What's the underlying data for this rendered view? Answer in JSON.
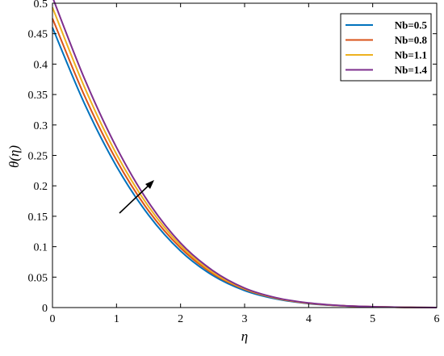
{
  "chart_data": {
    "type": "line",
    "xlabel": "η",
    "ylabel": "θ(η)",
    "xlim": [
      0,
      6
    ],
    "ylim": [
      0,
      0.5
    ],
    "xticks": [
      "0",
      "1",
      "2",
      "3",
      "4",
      "5",
      "6"
    ],
    "yticks": [
      "0",
      "0.05",
      "0.1",
      "0.15",
      "0.2",
      "0.25",
      "0.3",
      "0.35",
      "0.4",
      "0.45",
      "0.5"
    ],
    "grid": false,
    "legend_position": "top-right",
    "annotation": "arrow indicating increasing Nb",
    "x": [
      0,
      0.5,
      1,
      1.5,
      2,
      2.5,
      3,
      3.5,
      4,
      4.5,
      5,
      5.5,
      6
    ],
    "series": [
      {
        "name": "Nb=0.5",
        "color": "#0072BD",
        "values": [
          0.46,
          0.335,
          0.232,
          0.152,
          0.093,
          0.053,
          0.028,
          0.014,
          0.0065,
          0.0029,
          0.0012,
          0.0004,
          0.0
        ]
      },
      {
        "name": "Nb=0.8",
        "color": "#D95319",
        "values": [
          0.475,
          0.348,
          0.242,
          0.159,
          0.098,
          0.056,
          0.03,
          0.015,
          0.007,
          0.0031,
          0.0013,
          0.0004,
          0.0
        ]
      },
      {
        "name": "Nb=1.1",
        "color": "#EDB120",
        "values": [
          0.493,
          0.362,
          0.252,
          0.166,
          0.102,
          0.058,
          0.031,
          0.0155,
          0.0073,
          0.0032,
          0.0013,
          0.0004,
          0.0
        ]
      },
      {
        "name": "Nb=1.4",
        "color": "#7E2F8E",
        "values": [
          0.51,
          0.376,
          0.263,
          0.173,
          0.106,
          0.061,
          0.032,
          0.016,
          0.0076,
          0.0033,
          0.0014,
          0.0004,
          0.0
        ]
      }
    ]
  }
}
